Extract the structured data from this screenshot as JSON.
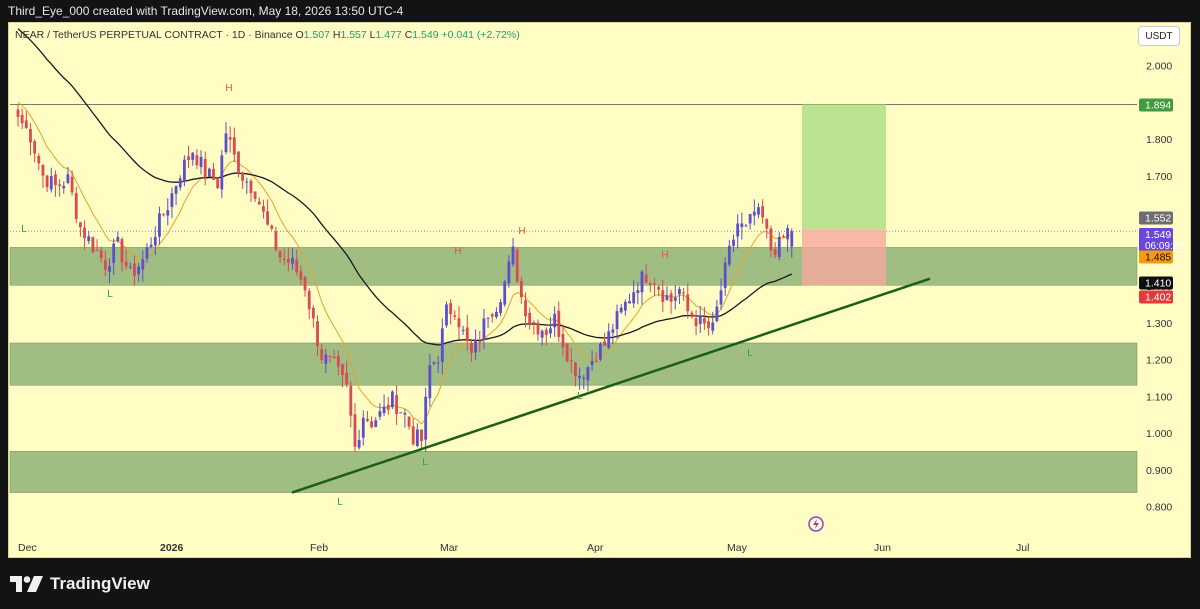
{
  "header": {
    "credit": "Third_Eye_000 created with TradingView.com, May 18, 2026 13:50 UTC-4"
  },
  "legend": {
    "symbol": "NEAR / TetherUS PERPETUAL CONTRACT · 1D · Binance",
    "o_label": "O",
    "o": "1.507",
    "h_label": "H",
    "h": "1.557",
    "l_label": "L",
    "l": "1.477",
    "c_label": "C",
    "c": "1.549",
    "change": "+0.041 (+2.72%)"
  },
  "currency_button": "USDT",
  "brand": {
    "name": "TradingView",
    "logo_icon": "tradingview-logo-icon"
  },
  "colors": {
    "background": "#fffcc4",
    "bull": "#5b4fcf",
    "bear": "#d94a52",
    "zone": "#8fb277",
    "target": "#b5e08a",
    "stop": "#f6a8a0",
    "trendline": "#1c5e16",
    "ema_fast": "#e3a52a",
    "ema_slow": "#1a1a1a"
  },
  "chart_data": {
    "type": "candlestick",
    "title": "NEAR / TetherUS PERPETUAL CONTRACT · 1D · Binance",
    "x_ticks": [
      "Dec",
      "2026",
      "Feb",
      "Mar",
      "Apr",
      "May",
      "Jun",
      "Jul"
    ],
    "y_ticks": [
      "0.800",
      "0.900",
      "1.000",
      "1.100",
      "1.200",
      "1.300",
      "1.400",
      "1.500",
      "1.600",
      "1.700",
      "1.800",
      "1.900",
      "2.000"
    ],
    "ylim": [
      0.77,
      2.11
    ],
    "grid": false,
    "series_note": "approximate daily closes read from the chart, Dec 1 2025 to May 18 2026",
    "key_points": [
      [
        0,
        1.86
      ],
      [
        3,
        1.81
      ],
      [
        6,
        1.7
      ],
      [
        9,
        1.67
      ],
      [
        12,
        1.69
      ],
      [
        15,
        1.56
      ],
      [
        18,
        1.51
      ],
      [
        21,
        1.46
      ],
      [
        24,
        1.51
      ],
      [
        27,
        1.43
      ],
      [
        30,
        1.47
      ],
      [
        33,
        1.55
      ],
      [
        36,
        1.62
      ],
      [
        39,
        1.71
      ],
      [
        42,
        1.77
      ],
      [
        45,
        1.71
      ],
      [
        48,
        1.68
      ],
      [
        50,
        1.82
      ],
      [
        52,
        1.75
      ],
      [
        54,
        1.7
      ],
      [
        57,
        1.66
      ],
      [
        60,
        1.56
      ],
      [
        63,
        1.48
      ],
      [
        66,
        1.46
      ],
      [
        69,
        1.4
      ],
      [
        71,
        1.3
      ],
      [
        73,
        1.21
      ],
      [
        76,
        1.18
      ],
      [
        79,
        1.12
      ],
      [
        81,
        0.96
      ],
      [
        83,
        1.05
      ],
      [
        85,
        1.03
      ],
      [
        88,
        1.06
      ],
      [
        90,
        1.09
      ],
      [
        93,
        1.05
      ],
      [
        95,
        0.99
      ],
      [
        97,
        0.98
      ],
      [
        99,
        1.18
      ],
      [
        101,
        1.21
      ],
      [
        103,
        1.33
      ],
      [
        105,
        1.34
      ],
      [
        107,
        1.27
      ],
      [
        109,
        1.21
      ],
      [
        111,
        1.26
      ],
      [
        113,
        1.33
      ],
      [
        115,
        1.35
      ],
      [
        117,
        1.41
      ],
      [
        119,
        1.49
      ],
      [
        121,
        1.37
      ],
      [
        123,
        1.31
      ],
      [
        125,
        1.29
      ],
      [
        127,
        1.28
      ],
      [
        129,
        1.31
      ],
      [
        131,
        1.25
      ],
      [
        133,
        1.19
      ],
      [
        135,
        1.16
      ],
      [
        137,
        1.18
      ],
      [
        139,
        1.22
      ],
      [
        141,
        1.24
      ],
      [
        143,
        1.29
      ],
      [
        145,
        1.33
      ],
      [
        147,
        1.37
      ],
      [
        149,
        1.41
      ],
      [
        151,
        1.43
      ],
      [
        153,
        1.42
      ],
      [
        155,
        1.38
      ],
      [
        157,
        1.36
      ],
      [
        159,
        1.39
      ],
      [
        161,
        1.33
      ],
      [
        163,
        1.31
      ],
      [
        165,
        1.29
      ],
      [
        167,
        1.28
      ],
      [
        169,
        1.39
      ],
      [
        171,
        1.49
      ],
      [
        173,
        1.57
      ],
      [
        175,
        1.55
      ],
      [
        177,
        1.6
      ],
      [
        179,
        1.58
      ],
      [
        181,
        1.5
      ],
      [
        183,
        1.51
      ],
      [
        185,
        1.55
      ],
      [
        186,
        1.549
      ]
    ],
    "zones": [
      {
        "from": 1.402,
        "to": 1.505
      },
      {
        "from": 1.13,
        "to": 1.245
      },
      {
        "from": 0.838,
        "to": 0.95
      }
    ],
    "horizontal_line": 1.894,
    "position": {
      "entry": 1.552,
      "target": 1.894,
      "stop": 1.402
    },
    "trendline": {
      "from": [
        0.838,
        "Feb 1"
      ],
      "to": [
        1.42,
        "Jun 12"
      ]
    },
    "price_labels": [
      {
        "value": "1.894",
        "color": "#3e9b40",
        "text_color": "#ffffff"
      },
      {
        "value": "1.552",
        "color": "#6d6d6d",
        "text_color": "#ffffff"
      },
      {
        "value": "1.549",
        "color": "#6a47d6",
        "text_color": "#ffffff",
        "sub": "06:09:25"
      },
      {
        "value": "1.485",
        "color": "#f59a15",
        "text_color": "#111111"
      },
      {
        "value": "1.410",
        "color": "#0f0f0f",
        "text_color": "#ffffff"
      },
      {
        "value": "1.402",
        "color": "#e5383b",
        "text_color": "#ffffff"
      }
    ],
    "annotations": [
      {
        "text": "H",
        "color": "#e05a3a"
      },
      {
        "text": "H",
        "color": "#e05a3a"
      },
      {
        "text": "H",
        "color": "#e05a3a"
      },
      {
        "text": "H",
        "color": "#e05a3a"
      },
      {
        "text": "L",
        "color": "#2f9e52"
      },
      {
        "text": "L",
        "color": "#2f9e52"
      },
      {
        "text": "L",
        "color": "#2f9e52"
      },
      {
        "text": "L",
        "color": "#2f9e52"
      },
      {
        "text": "L",
        "color": "#2f9e52"
      },
      {
        "text": "L",
        "color": "#2f9e52"
      }
    ]
  }
}
